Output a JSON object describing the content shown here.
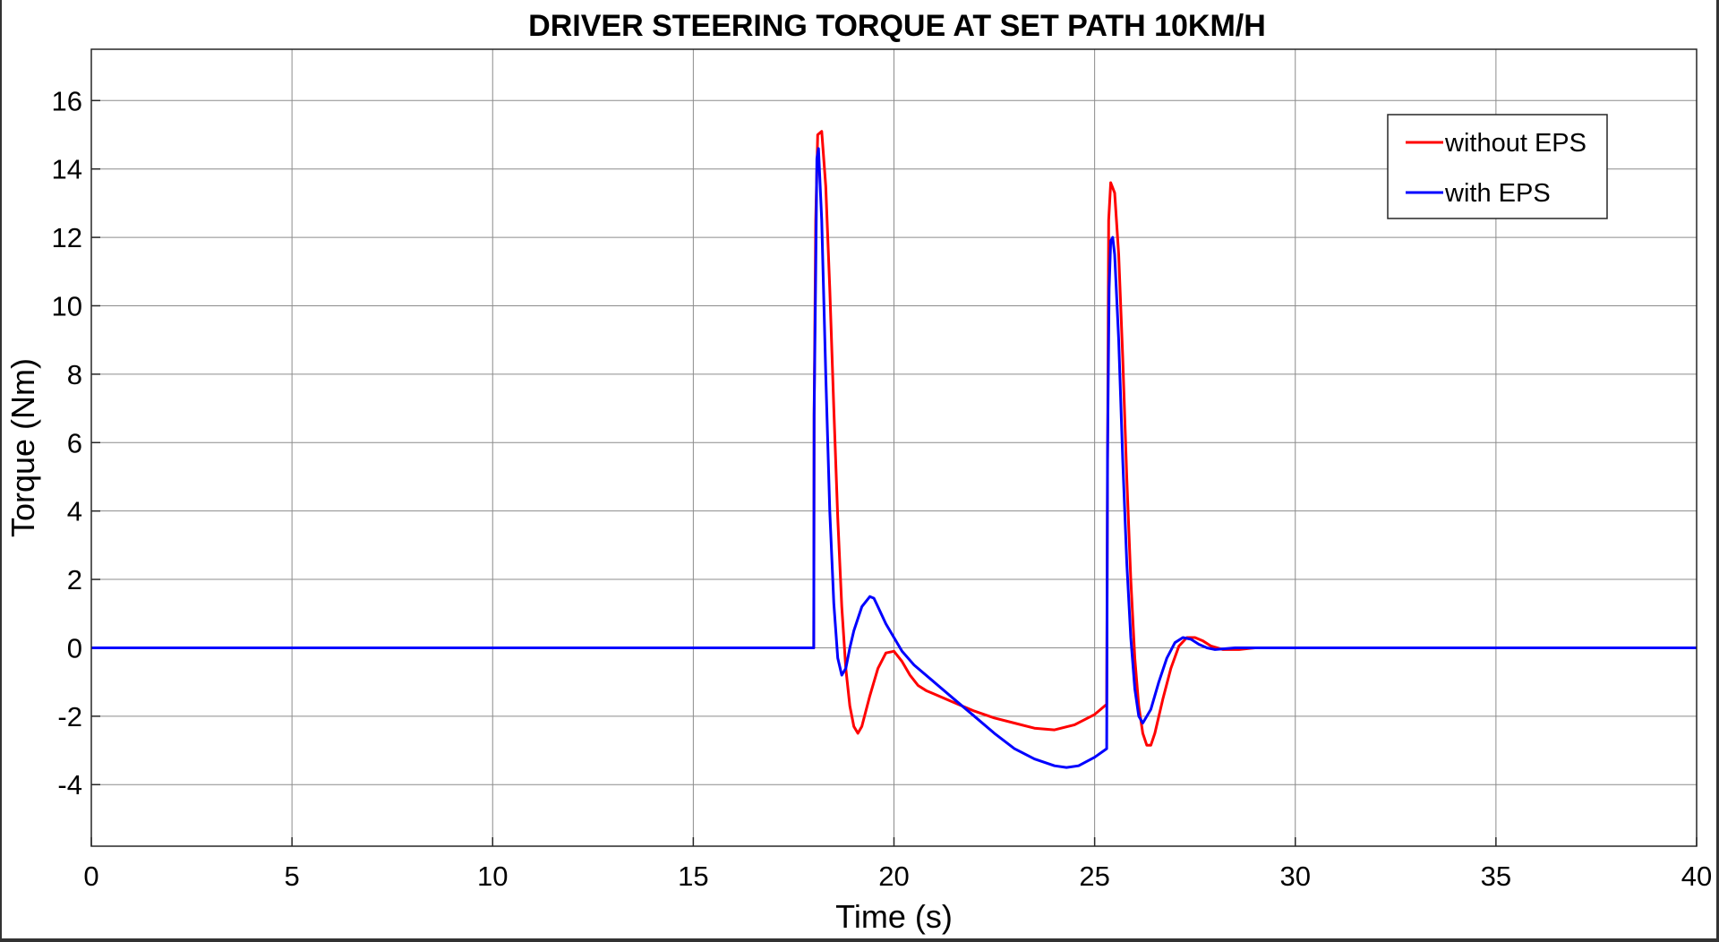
{
  "chart_data": {
    "type": "line",
    "title": "DRIVER STEERING TORQUE AT SET PATH 10KM/H",
    "xlabel": "Time (s)",
    "ylabel": "Torque (Nm)",
    "xlim": [
      0,
      40
    ],
    "ylim": [
      -5.8,
      17.5
    ],
    "x_ticks": [
      0,
      5,
      10,
      15,
      20,
      25,
      30,
      35,
      40
    ],
    "y_ticks": [
      -4,
      -2,
      0,
      2,
      4,
      6,
      8,
      10,
      12,
      14,
      16
    ],
    "grid": true,
    "legend_position": "top-right",
    "series": [
      {
        "name": "without EPS",
        "color": "#ff0000",
        "x": [
          0,
          18,
          18.01,
          18.05,
          18.1,
          18.2,
          18.3,
          18.4,
          18.5,
          18.6,
          18.7,
          18.8,
          18.9,
          19.0,
          19.1,
          19.2,
          19.4,
          19.6,
          19.8,
          20.0,
          20.2,
          20.4,
          20.6,
          20.8,
          21.0,
          21.5,
          22.0,
          22.5,
          23.0,
          23.5,
          24.0,
          24.5,
          25.0,
          25.3,
          25.32,
          25.35,
          25.4,
          25.5,
          25.6,
          25.7,
          25.8,
          25.9,
          26.0,
          26.1,
          26.2,
          26.3,
          26.4,
          26.5,
          26.7,
          26.9,
          27.1,
          27.3,
          27.5,
          27.7,
          27.9,
          28.2,
          28.6,
          29.0,
          30,
          35,
          40
        ],
        "y": [
          0,
          0,
          6.8,
          12.5,
          15.0,
          15.1,
          13.5,
          10.5,
          7.0,
          3.8,
          1.2,
          -0.6,
          -1.7,
          -2.3,
          -2.5,
          -2.3,
          -1.4,
          -0.6,
          -0.15,
          -0.1,
          -0.4,
          -0.8,
          -1.1,
          -1.25,
          -1.35,
          -1.6,
          -1.85,
          -2.05,
          -2.2,
          -2.35,
          -2.4,
          -2.25,
          -1.95,
          -1.65,
          5.0,
          12.5,
          13.6,
          13.3,
          11.5,
          8.5,
          5.0,
          2.0,
          -0.3,
          -1.7,
          -2.5,
          -2.85,
          -2.85,
          -2.5,
          -1.5,
          -0.6,
          0.05,
          0.3,
          0.3,
          0.2,
          0.05,
          -0.05,
          -0.05,
          0.0,
          0.0,
          0.0,
          0.0
        ]
      },
      {
        "name": "with EPS",
        "color": "#0000ff",
        "x": [
          0,
          18,
          18.01,
          18.05,
          18.08,
          18.12,
          18.2,
          18.3,
          18.4,
          18.5,
          18.6,
          18.7,
          18.8,
          18.9,
          19.0,
          19.2,
          19.4,
          19.5,
          19.6,
          19.8,
          20.0,
          20.2,
          20.5,
          21.0,
          21.5,
          22.0,
          22.5,
          23.0,
          23.5,
          24.0,
          24.3,
          24.6,
          25.0,
          25.3,
          25.32,
          25.36,
          25.4,
          25.45,
          25.5,
          25.6,
          25.7,
          25.8,
          25.9,
          26.0,
          26.1,
          26.2,
          26.4,
          26.6,
          26.8,
          27.0,
          27.2,
          27.4,
          27.6,
          27.8,
          28.0,
          28.5,
          29.0,
          30,
          35,
          40
        ],
        "y": [
          0,
          0,
          6.8,
          11.0,
          14.3,
          14.6,
          12.5,
          8.0,
          4.0,
          1.3,
          -0.3,
          -0.8,
          -0.6,
          0.0,
          0.5,
          1.2,
          1.5,
          1.45,
          1.2,
          0.7,
          0.3,
          -0.1,
          -0.5,
          -1.0,
          -1.5,
          -2.0,
          -2.5,
          -2.95,
          -3.25,
          -3.45,
          -3.5,
          -3.45,
          -3.2,
          -2.95,
          5.5,
          10.5,
          11.9,
          12.0,
          11.5,
          9.0,
          5.5,
          2.5,
          0.3,
          -1.2,
          -2.0,
          -2.2,
          -1.8,
          -1.0,
          -0.3,
          0.15,
          0.3,
          0.25,
          0.1,
          0.0,
          -0.05,
          0.0,
          0.0,
          0.0,
          0.0,
          0.0
        ]
      }
    ]
  }
}
